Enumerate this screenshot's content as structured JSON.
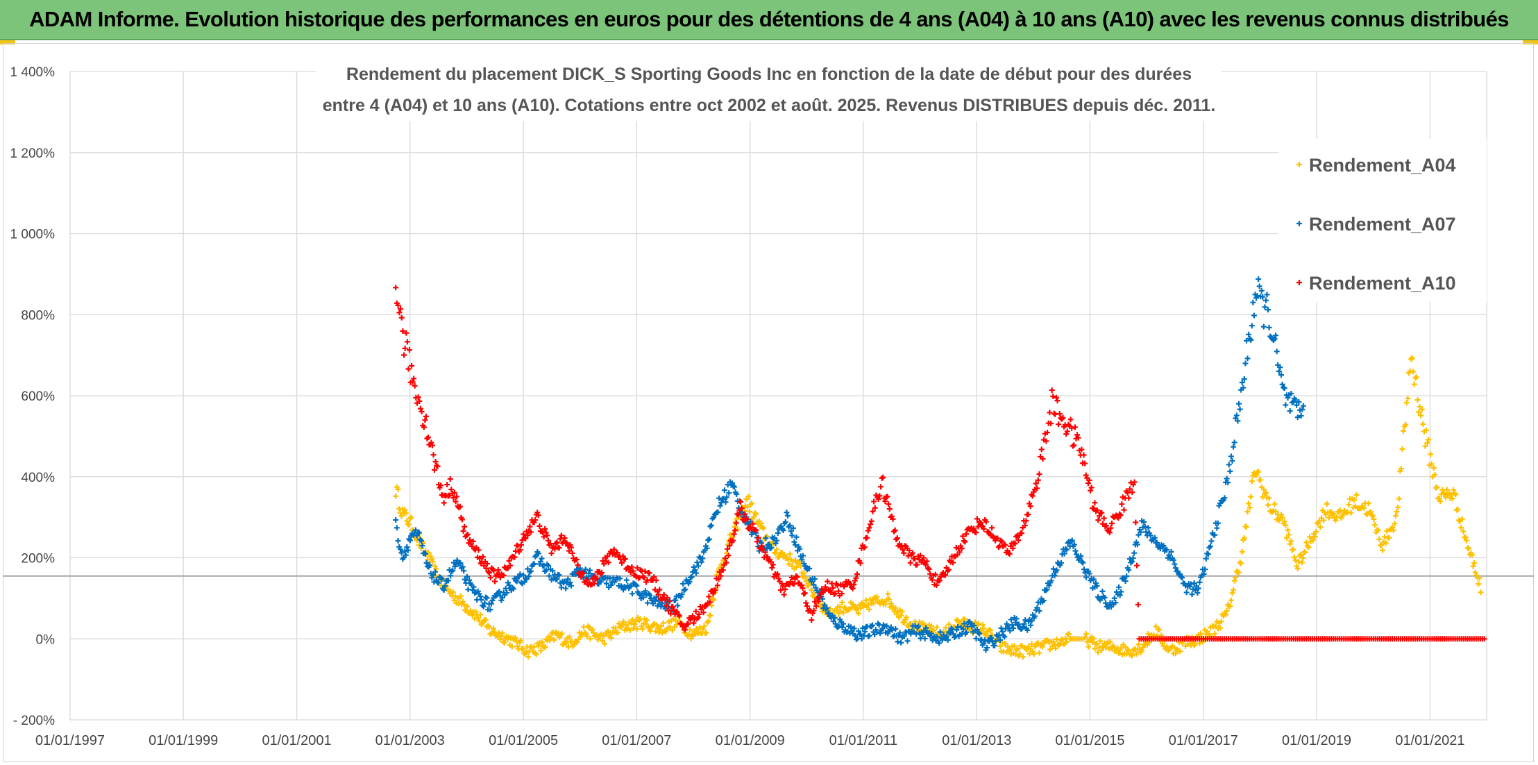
{
  "banner": {
    "title": "ADAM Informe. Evolution historique des performances en euros pour des détentions de 4 ans (A04) à 10 ans (A10) avec les revenus connus distribués"
  },
  "colors": {
    "banner": "#7cc47a",
    "A04": "#ffc000",
    "A07": "#0070c0",
    "A10": "#ff0000",
    "grid": "#d9d9d9",
    "ref_line": "#a6a6a6"
  },
  "chart_data": {
    "type": "scatter",
    "marker": "plus",
    "title_lines": [
      "Rendement du placement DICK_S Sporting Goods Inc en fonction de la date de début pour des durées",
      "entre 4 (A04) et 10 ans (A10). Cotations entre oct 2002 et août. 2025. Revenus DISTRIBUES depuis déc. 2011."
    ],
    "xlabel": "",
    "ylabel": "",
    "x_range": [
      "1997-01-01",
      "2022-01-01"
    ],
    "x_tick_labels": [
      "01/01/1997",
      "01/01/1999",
      "01/01/2001",
      "01/01/2003",
      "01/01/2005",
      "01/01/2007",
      "01/01/2009",
      "01/01/2011",
      "01/01/2013",
      "01/01/2015",
      "01/01/2017",
      "01/01/2019",
      "01/01/2021"
    ],
    "y_range_percent": [
      -200,
      1400
    ],
    "y_ticks_percent": [
      -200,
      0,
      200,
      400,
      600,
      800,
      1000,
      1200,
      1400
    ],
    "y_tick_labels": [
      "- 200%",
      "0%",
      "200%",
      "400%",
      "600%",
      "800%",
      "1 000%",
      "1 200%",
      "1 400%"
    ],
    "reference_line_percent": 155,
    "grid": true,
    "legend_position": "top-right",
    "series": [
      {
        "name": "Rendement_A04",
        "color": "#ffc000",
        "points": [
          [
            "2002-10-01",
            370
          ],
          [
            "2002-11-15",
            310
          ],
          [
            "2003-01-15",
            280
          ],
          [
            "2003-03-01",
            240
          ],
          [
            "2003-05-01",
            200
          ],
          [
            "2003-07-01",
            150
          ],
          [
            "2003-09-01",
            120
          ],
          [
            "2003-12-01",
            90
          ],
          [
            "2004-03-01",
            60
          ],
          [
            "2004-06-01",
            20
          ],
          [
            "2004-09-01",
            5
          ],
          [
            "2004-12-01",
            -15
          ],
          [
            "2005-02-01",
            -30
          ],
          [
            "2005-05-01",
            -20
          ],
          [
            "2005-08-01",
            10
          ],
          [
            "2005-11-01",
            -10
          ],
          [
            "2006-02-01",
            20
          ],
          [
            "2006-06-01",
            0
          ],
          [
            "2006-10-01",
            30
          ],
          [
            "2007-02-01",
            40
          ],
          [
            "2007-06-01",
            25
          ],
          [
            "2007-10-01",
            40
          ],
          [
            "2008-01-01",
            10
          ],
          [
            "2008-04-01",
            30
          ],
          [
            "2008-06-01",
            150
          ],
          [
            "2008-09-01",
            250
          ],
          [
            "2008-12-15",
            340
          ],
          [
            "2009-03-01",
            280
          ],
          [
            "2009-06-01",
            220
          ],
          [
            "2009-09-01",
            200
          ],
          [
            "2009-12-01",
            170
          ],
          [
            "2010-03-01",
            100
          ],
          [
            "2010-06-01",
            60
          ],
          [
            "2010-09-01",
            80
          ],
          [
            "2010-12-01",
            70
          ],
          [
            "2011-03-01",
            90
          ],
          [
            "2011-06-01",
            100
          ],
          [
            "2011-09-01",
            60
          ],
          [
            "2011-12-01",
            30
          ],
          [
            "2012-03-01",
            20
          ],
          [
            "2012-06-01",
            10
          ],
          [
            "2012-09-01",
            40
          ],
          [
            "2012-12-01",
            30
          ],
          [
            "2013-03-01",
            20
          ],
          [
            "2013-06-01",
            -20
          ],
          [
            "2013-09-01",
            -30
          ],
          [
            "2013-12-01",
            -30
          ],
          [
            "2014-03-01",
            -20
          ],
          [
            "2014-06-01",
            -10
          ],
          [
            "2014-09-01",
            0
          ],
          [
            "2014-12-01",
            0
          ],
          [
            "2015-03-01",
            -20
          ],
          [
            "2015-06-01",
            -20
          ],
          [
            "2015-09-01",
            -30
          ],
          [
            "2015-12-01",
            -20
          ],
          [
            "2016-03-01",
            20
          ],
          [
            "2016-06-01",
            -30
          ],
          [
            "2016-09-01",
            -10
          ],
          [
            "2016-12-01",
            0
          ],
          [
            "2017-03-01",
            20
          ],
          [
            "2017-06-01",
            60
          ],
          [
            "2017-09-01",
            200
          ],
          [
            "2017-12-01",
            420
          ],
          [
            "2018-03-01",
            330
          ],
          [
            "2018-06-01",
            290
          ],
          [
            "2018-09-01",
            180
          ],
          [
            "2018-12-01",
            250
          ],
          [
            "2019-03-01",
            320
          ],
          [
            "2019-06-01",
            300
          ],
          [
            "2019-09-01",
            340
          ],
          [
            "2019-12-01",
            320
          ],
          [
            "2020-03-01",
            230
          ],
          [
            "2020-06-01",
            300
          ],
          [
            "2020-09-01",
            700
          ],
          [
            "2020-12-01",
            500
          ],
          [
            "2021-03-01",
            350
          ],
          [
            "2021-06-01",
            360
          ],
          [
            "2021-09-01",
            230
          ],
          [
            "2021-12-01",
            120
          ]
        ]
      },
      {
        "name": "Rendement_A07",
        "color": "#0070c0",
        "points": [
          [
            "2002-10-01",
            280
          ],
          [
            "2002-11-15",
            200
          ],
          [
            "2003-01-15",
            260
          ],
          [
            "2003-03-01",
            250
          ],
          [
            "2003-05-01",
            170
          ],
          [
            "2003-08-01",
            130
          ],
          [
            "2003-11-01",
            190
          ],
          [
            "2004-02-01",
            120
          ],
          [
            "2004-06-01",
            80
          ],
          [
            "2004-10-01",
            130
          ],
          [
            "2005-01-01",
            150
          ],
          [
            "2005-04-01",
            200
          ],
          [
            "2005-07-01",
            160
          ],
          [
            "2005-10-01",
            130
          ],
          [
            "2006-01-01",
            170
          ],
          [
            "2006-05-01",
            140
          ],
          [
            "2006-09-01",
            140
          ],
          [
            "2007-01-01",
            120
          ],
          [
            "2007-05-01",
            90
          ],
          [
            "2007-09-01",
            80
          ],
          [
            "2007-12-01",
            150
          ],
          [
            "2008-03-01",
            200
          ],
          [
            "2008-06-01",
            320
          ],
          [
            "2008-09-01",
            380
          ],
          [
            "2008-12-15",
            290
          ],
          [
            "2009-03-01",
            230
          ],
          [
            "2009-06-01",
            240
          ],
          [
            "2009-09-01",
            300
          ],
          [
            "2009-12-01",
            200
          ],
          [
            "2010-03-01",
            130
          ],
          [
            "2010-06-01",
            50
          ],
          [
            "2010-09-01",
            30
          ],
          [
            "2010-12-01",
            10
          ],
          [
            "2011-03-01",
            20
          ],
          [
            "2011-06-01",
            30
          ],
          [
            "2011-09-01",
            0
          ],
          [
            "2011-12-01",
            20
          ],
          [
            "2012-03-01",
            10
          ],
          [
            "2012-06-01",
            0
          ],
          [
            "2012-09-01",
            20
          ],
          [
            "2012-12-01",
            30
          ],
          [
            "2013-03-01",
            -20
          ],
          [
            "2013-06-01",
            10
          ],
          [
            "2013-09-01",
            40
          ],
          [
            "2013-12-01",
            30
          ],
          [
            "2014-03-01",
            100
          ],
          [
            "2014-06-01",
            180
          ],
          [
            "2014-09-01",
            240
          ],
          [
            "2014-12-01",
            170
          ],
          [
            "2015-03-01",
            110
          ],
          [
            "2015-06-01",
            80
          ],
          [
            "2015-09-01",
            170
          ],
          [
            "2015-12-01",
            280
          ],
          [
            "2016-03-01",
            240
          ],
          [
            "2016-06-01",
            210
          ],
          [
            "2016-09-01",
            130
          ],
          [
            "2016-12-01",
            120
          ],
          [
            "2017-03-01",
            250
          ],
          [
            "2017-06-01",
            380
          ],
          [
            "2017-09-01",
            600
          ],
          [
            "2017-12-01",
            850
          ],
          [
            "2018-03-01",
            800
          ],
          [
            "2018-06-01",
            600
          ],
          [
            "2018-09-01",
            550
          ],
          [
            "2018-10-15",
            570
          ]
        ]
      },
      {
        "name": "Rendement_A10",
        "color": "#ff0000",
        "points": [
          [
            "2002-10-01",
            900
          ],
          [
            "2002-11-01",
            780
          ],
          [
            "2002-12-15",
            700
          ],
          [
            "2003-02-01",
            620
          ],
          [
            "2003-04-01",
            550
          ],
          [
            "2003-06-01",
            450
          ],
          [
            "2003-08-01",
            350
          ],
          [
            "2003-10-01",
            380
          ],
          [
            "2004-01-01",
            250
          ],
          [
            "2004-04-01",
            200
          ],
          [
            "2004-07-01",
            150
          ],
          [
            "2004-10-01",
            180
          ],
          [
            "2005-01-01",
            250
          ],
          [
            "2005-04-01",
            300
          ],
          [
            "2005-07-01",
            220
          ],
          [
            "2005-10-01",
            250
          ],
          [
            "2006-01-01",
            160
          ],
          [
            "2006-04-01",
            140
          ],
          [
            "2006-08-01",
            220
          ],
          [
            "2006-12-01",
            170
          ],
          [
            "2007-04-01",
            150
          ],
          [
            "2007-08-01",
            80
          ],
          [
            "2007-11-01",
            30
          ],
          [
            "2008-02-01",
            60
          ],
          [
            "2008-05-01",
            110
          ],
          [
            "2008-08-01",
            200
          ],
          [
            "2008-11-01",
            320
          ],
          [
            "2009-02-01",
            260
          ],
          [
            "2009-05-01",
            190
          ],
          [
            "2009-08-01",
            120
          ],
          [
            "2009-11-01",
            150
          ],
          [
            "2010-02-01",
            60
          ],
          [
            "2010-05-01",
            130
          ],
          [
            "2010-08-01",
            120
          ],
          [
            "2010-11-01",
            140
          ],
          [
            "2011-02-01",
            270
          ],
          [
            "2011-05-01",
            390
          ],
          [
            "2011-08-01",
            250
          ],
          [
            "2011-11-01",
            200
          ],
          [
            "2012-02-01",
            190
          ],
          [
            "2012-05-01",
            130
          ],
          [
            "2012-08-01",
            200
          ],
          [
            "2012-11-01",
            260
          ],
          [
            "2013-02-01",
            290
          ],
          [
            "2013-05-01",
            250
          ],
          [
            "2013-08-01",
            210
          ],
          [
            "2013-11-01",
            280
          ],
          [
            "2014-02-01",
            400
          ],
          [
            "2014-05-01",
            580
          ],
          [
            "2014-08-01",
            530
          ],
          [
            "2014-11-01",
            470
          ],
          [
            "2015-02-01",
            320
          ],
          [
            "2015-05-01",
            270
          ],
          [
            "2015-08-01",
            330
          ],
          [
            "2015-10-15",
            390
          ],
          [
            "2015-11-15",
            0
          ],
          [
            "2017-01-01",
            0
          ],
          [
            "2019-01-01",
            0
          ],
          [
            "2021-01-01",
            0
          ],
          [
            "2021-12-31",
            0
          ]
        ]
      }
    ]
  }
}
